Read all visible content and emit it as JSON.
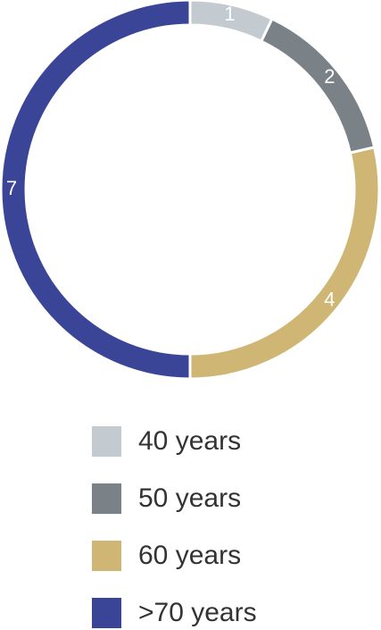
{
  "chart_data": {
    "type": "donut",
    "categories": [
      "40 years",
      "50 years",
      "60 years",
      ">70 years"
    ],
    "values": [
      1,
      2,
      4,
      7
    ],
    "colors": [
      "#c4cbd0",
      "#7b8287",
      "#cfb674",
      "#3b4598"
    ]
  }
}
